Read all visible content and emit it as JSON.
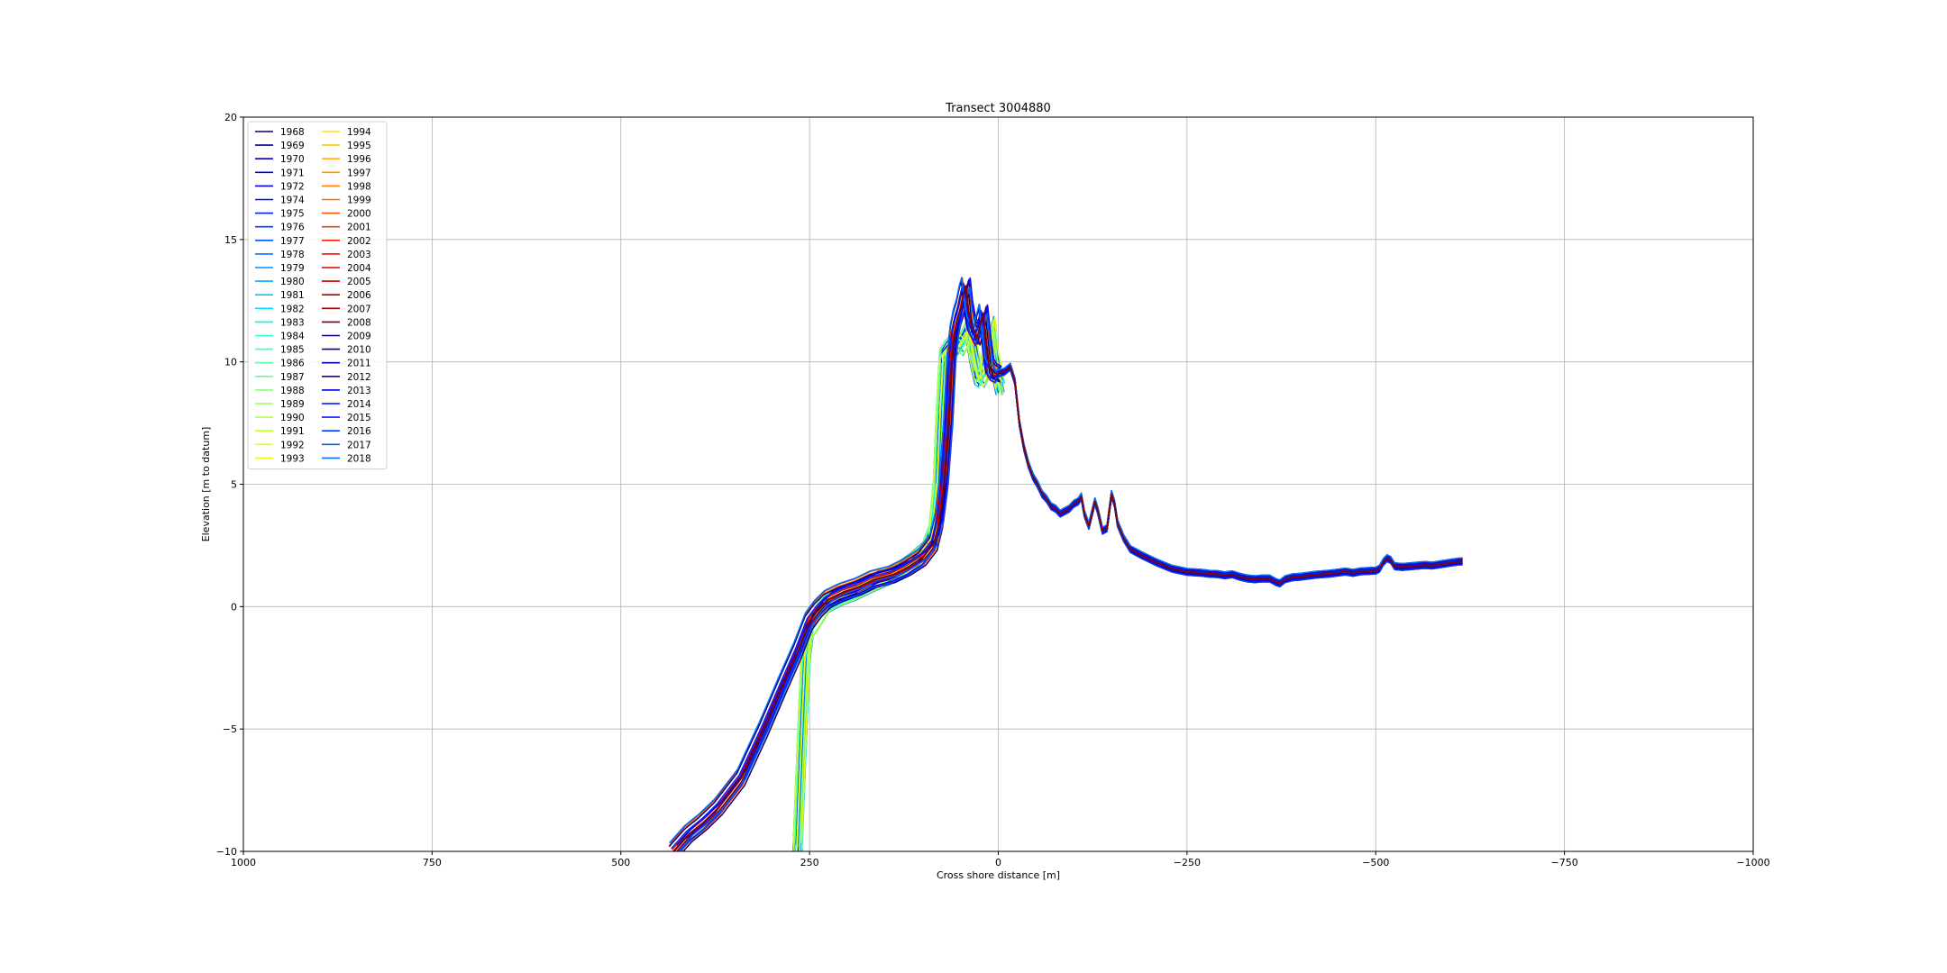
{
  "chart_data": {
    "type": "line",
    "title": "Transect 3004880",
    "xlabel": "Cross shore distance [m]",
    "ylabel": "Elevation [m to datum]",
    "xlim": [
      1000,
      -1000
    ],
    "ylim": [
      -10,
      20
    ],
    "xticks": [
      1000,
      750,
      500,
      250,
      0,
      -250,
      -500,
      -750,
      -1000
    ],
    "xtick_labels": [
      "1000",
      "750",
      "500",
      "250",
      "0",
      "−250",
      "−500",
      "−750",
      "−1000"
    ],
    "yticks": [
      -10,
      -5,
      0,
      5,
      10,
      15,
      20
    ],
    "ytick_labels": [
      "−10",
      "−5",
      "0",
      "5",
      "10",
      "15",
      "20"
    ],
    "grid": true,
    "x_axis_inverted": true,
    "legend_position": "upper-left",
    "legend_columns": 2,
    "colormap": "jet",
    "series_names": [
      "1968",
      "1969",
      "1970",
      "1971",
      "1972",
      "1974",
      "1975",
      "1976",
      "1977",
      "1978",
      "1979",
      "1980",
      "1981",
      "1982",
      "1983",
      "1984",
      "1985",
      "1986",
      "1987",
      "1988",
      "1989",
      "1990",
      "1991",
      "1992",
      "1993",
      "1994",
      "1995",
      "1996",
      "1997",
      "1998",
      "1999",
      "2000",
      "2001",
      "2002",
      "2003",
      "2004",
      "2005",
      "2006",
      "2007",
      "2008",
      "2009",
      "2010",
      "2011",
      "2012",
      "2013",
      "2014",
      "2015",
      "2016",
      "2017",
      "2018"
    ],
    "series_colors": [
      "#00007f",
      "#00009b",
      "#0000b7",
      "#0000d3",
      "#0000ef",
      "#0008ff",
      "#0020ff",
      "#003cff",
      "#0058ff",
      "#0074ff",
      "#0090ff",
      "#00a8ff",
      "#00c4ff",
      "#00e0f7",
      "#12f2e4",
      "#2bffcd",
      "#41ffb7",
      "#58ffa0",
      "#6eff8a",
      "#84ff73",
      "#9aff5d",
      "#b1ff46",
      "#c7ff30",
      "#e0ff17",
      "#f4f802",
      "#ffe000",
      "#ffc800",
      "#ffb000",
      "#ff9800",
      "#ff8000",
      "#ff6a00",
      "#ff5200",
      "#ff3a00",
      "#ff2400",
      "#f40c00",
      "#d80000",
      "#c40000",
      "#b20000",
      "#980000",
      "#800000"
    ],
    "profile_templates": {
      "seaward_early": [
        [
          266,
          -10
        ],
        [
          262,
          -7
        ],
        [
          258,
          -4
        ],
        [
          255,
          -2
        ],
        [
          251,
          -1
        ],
        [
          240,
          -0.5
        ],
        [
          228,
          0.1
        ],
        [
          210,
          0.4
        ],
        [
          192,
          0.6
        ],
        [
          172,
          0.9
        ],
        [
          150,
          1.2
        ],
        [
          128,
          1.5
        ],
        [
          110,
          1.9
        ],
        [
          95,
          2.3
        ],
        [
          86,
          3.0
        ],
        [
          80,
          5
        ],
        [
          76,
          8
        ],
        [
          72,
          10.2
        ],
        [
          66,
          10.5
        ],
        [
          58,
          10.8
        ],
        [
          50,
          10.6
        ],
        [
          44,
          10.9
        ],
        [
          38,
          11.3
        ],
        [
          32,
          10.2
        ],
        [
          26,
          9.4
        ],
        [
          22,
          9.3
        ],
        [
          18,
          9.6
        ],
        [
          14,
          10.5
        ],
        [
          10,
          11.5
        ],
        [
          6,
          10.2
        ],
        [
          2,
          9.6
        ],
        [
          -2,
          9.0
        ]
      ],
      "seaward_late": [
        [
          430,
          -10
        ],
        [
          410,
          -9.3
        ],
        [
          390,
          -8.8
        ],
        [
          370,
          -8.2
        ],
        [
          340,
          -7.0
        ],
        [
          310,
          -5.0
        ],
        [
          285,
          -3.2
        ],
        [
          265,
          -1.8
        ],
        [
          250,
          -0.6
        ],
        [
          238,
          -0.1
        ],
        [
          225,
          0.3
        ],
        [
          205,
          0.6
        ],
        [
          185,
          0.8
        ],
        [
          165,
          1.1
        ],
        [
          140,
          1.3
        ],
        [
          120,
          1.6
        ],
        [
          100,
          2.0
        ],
        [
          85,
          2.6
        ],
        [
          78,
          3.5
        ],
        [
          72,
          5
        ],
        [
          66,
          7.5
        ],
        [
          62,
          10
        ],
        [
          58,
          11.2
        ],
        [
          54,
          11.8
        ],
        [
          50,
          12.2
        ],
        [
          46,
          12.8
        ],
        [
          43,
          13.1
        ],
        [
          40,
          12.2
        ],
        [
          36,
          11.5
        ],
        [
          32,
          11.3
        ],
        [
          28,
          11.0
        ],
        [
          24,
          11.5
        ],
        [
          20,
          12.0
        ],
        [
          16,
          10.8
        ],
        [
          12,
          9.8
        ],
        [
          8,
          9.6
        ],
        [
          2,
          9.5
        ]
      ],
      "landward": [
        [
          2,
          9.5
        ],
        [
          -8,
          9.6
        ],
        [
          -16,
          9.8
        ],
        [
          -22,
          9.2
        ],
        [
          -28,
          7.5
        ],
        [
          -34,
          6.5
        ],
        [
          -40,
          5.8
        ],
        [
          -46,
          5.3
        ],
        [
          -52,
          5.0
        ],
        [
          -58,
          4.6
        ],
        [
          -64,
          4.4
        ],
        [
          -70,
          4.1
        ],
        [
          -76,
          4.0
        ],
        [
          -82,
          3.8
        ],
        [
          -88,
          3.9
        ],
        [
          -94,
          4.0
        ],
        [
          -100,
          4.2
        ],
        [
          -106,
          4.3
        ],
        [
          -110,
          4.5
        ],
        [
          -114,
          3.8
        ],
        [
          -120,
          3.3
        ],
        [
          -124,
          3.8
        ],
        [
          -128,
          4.3
        ],
        [
          -132,
          3.9
        ],
        [
          -138,
          3.1
        ],
        [
          -144,
          3.2
        ],
        [
          -150,
          4.6
        ],
        [
          -154,
          4.2
        ],
        [
          -158,
          3.4
        ],
        [
          -166,
          2.8
        ],
        [
          -175,
          2.35
        ],
        [
          -190,
          2.1
        ],
        [
          -210,
          1.8
        ],
        [
          -230,
          1.55
        ],
        [
          -250,
          1.42
        ],
        [
          -270,
          1.38
        ],
        [
          -280,
          1.34
        ],
        [
          -290,
          1.33
        ],
        [
          -300,
          1.28
        ],
        [
          -310,
          1.32
        ],
        [
          -320,
          1.22
        ],
        [
          -330,
          1.15
        ],
        [
          -340,
          1.12
        ],
        [
          -350,
          1.15
        ],
        [
          -360,
          1.14
        ],
        [
          -368,
          1.0
        ],
        [
          -373,
          0.95
        ],
        [
          -380,
          1.12
        ],
        [
          -390,
          1.2
        ],
        [
          -400,
          1.22
        ],
        [
          -420,
          1.3
        ],
        [
          -440,
          1.35
        ],
        [
          -460,
          1.43
        ],
        [
          -470,
          1.38
        ],
        [
          -480,
          1.44
        ],
        [
          -500,
          1.47
        ],
        [
          -505,
          1.55
        ],
        [
          -510,
          1.82
        ],
        [
          -515,
          1.98
        ],
        [
          -520,
          1.9
        ],
        [
          -525,
          1.65
        ],
        [
          -535,
          1.62
        ],
        [
          -550,
          1.66
        ],
        [
          -565,
          1.7
        ],
        [
          -575,
          1.68
        ],
        [
          -590,
          1.75
        ],
        [
          -600,
          1.8
        ],
        [
          -610,
          1.84
        ],
        [
          -615,
          1.85
        ]
      ]
    },
    "highlight_series": {
      "name": "2018",
      "color": "#800000"
    }
  }
}
